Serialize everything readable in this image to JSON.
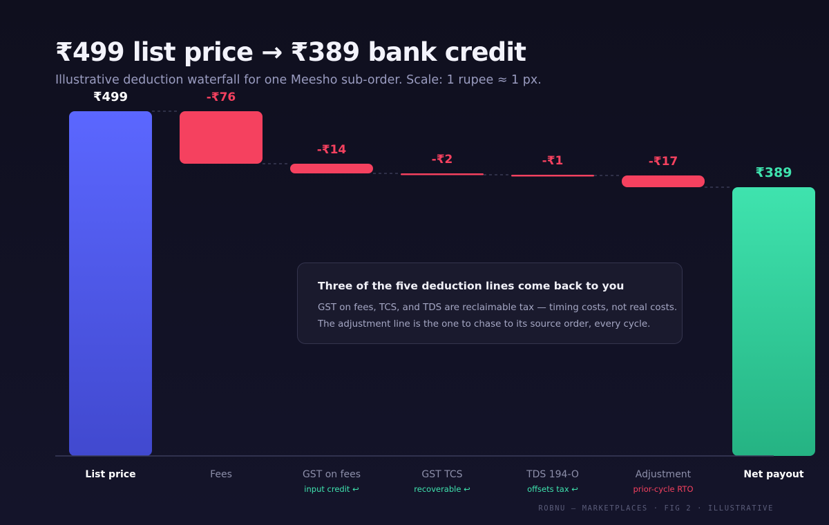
{
  "title": "₹499 list price → ₹389 bank credit",
  "subtitle": "Illustrative deduction waterfall for one Meesho sub-order. Scale: 1 rupee ≈ 1 px.",
  "colors": {
    "total_start": "#5b67ff",
    "total_end": "#3fe3ae",
    "deduction": "#f5415f",
    "recoverable_note": "#3fe3ae",
    "warning_note": "#f5415f"
  },
  "chart_data": {
    "type": "waterfall",
    "title": "₹499 list price → ₹389 bank credit",
    "unit": "₹",
    "ylim": [
      0,
      499
    ],
    "grid": false,
    "categories": [
      "List price",
      "Fees",
      "GST on fees",
      "GST TCS",
      "TDS 194-O",
      "Adjustment",
      "Net payout"
    ],
    "values": [
      499,
      -76,
      -14,
      -2,
      -1,
      -17,
      389
    ],
    "value_labels": [
      "₹499",
      "-₹76",
      "-₹14",
      "-₹2",
      "-₹1",
      "-₹17",
      "₹389"
    ],
    "kinds": [
      "total",
      "delta",
      "delta",
      "delta",
      "delta",
      "delta",
      "total"
    ],
    "notes": [
      {
        "text": "",
        "kind": ""
      },
      {
        "text": "",
        "kind": ""
      },
      {
        "text": "input credit ↩",
        "kind": "recoverable"
      },
      {
        "text": "recoverable ↩",
        "kind": "recoverable"
      },
      {
        "text": "offsets tax ↩",
        "kind": "recoverable"
      },
      {
        "text": "prior-cycle RTO",
        "kind": "warning"
      },
      {
        "text": "",
        "kind": ""
      }
    ]
  },
  "callout": {
    "title": "Three of the five deduction lines come back to you",
    "line1": "GST on fees, TCS, and TDS are reclaimable tax — timing costs, not real costs.",
    "line2": "The adjustment line is the one to chase to its source order, every cycle."
  },
  "footer": "ROBNU — MARKETPLACES · FIG 2 · ILLUSTRATIVE"
}
